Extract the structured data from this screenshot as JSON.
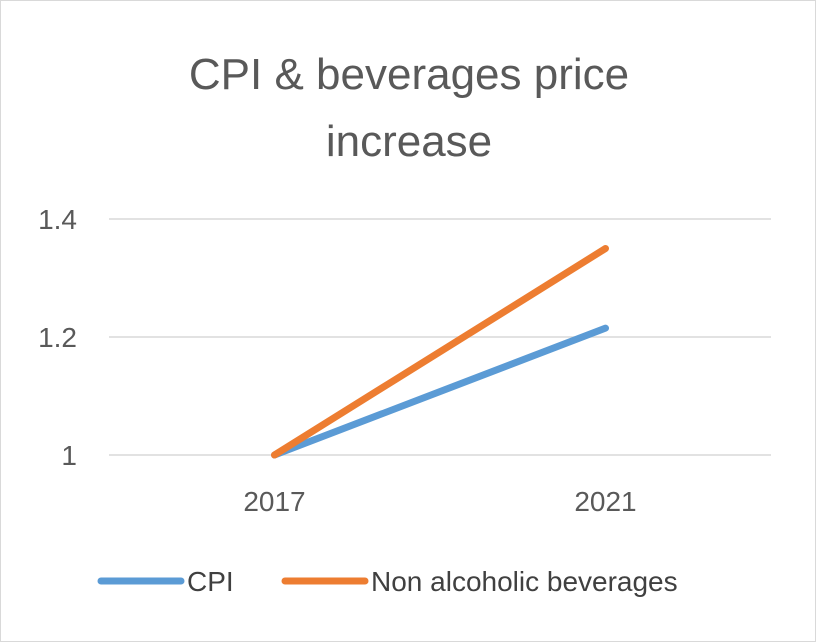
{
  "chart_data": {
    "type": "line",
    "title": "CPI & beverages price increase",
    "title_lines": [
      "CPI & beverages price",
      "increase"
    ],
    "categories": [
      "2017",
      "2021"
    ],
    "series": [
      {
        "name": "CPI",
        "values": [
          1.0,
          1.215
        ],
        "color": "#5B9BD5"
      },
      {
        "name": "Non alcoholic beverages",
        "values": [
          1.0,
          1.35
        ],
        "color": "#ED7D31"
      }
    ],
    "y_ticks": [
      {
        "value": 1,
        "label": "1"
      },
      {
        "value": 1.2,
        "label": "1.2"
      },
      {
        "value": 1.4,
        "label": "1.4"
      }
    ],
    "ylim": [
      1,
      1.4
    ],
    "xlabel": "",
    "ylabel": "",
    "grid": true,
    "legend": "bottom"
  }
}
